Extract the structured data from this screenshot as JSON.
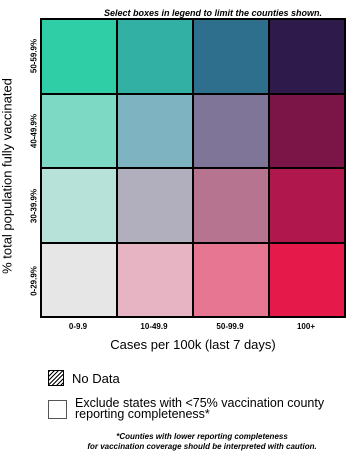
{
  "instruction": "Select boxes in legend to limit the counties shown.",
  "y_axis": {
    "title": "% total population fully vaccinated",
    "rows": [
      "50-59.9%",
      "40-49.9%",
      "30-39.9%",
      "0-29.9%"
    ]
  },
  "x_axis": {
    "title": "Cases per 100k (last 7 days)",
    "columns": [
      "0-9.9",
      "10-49.9",
      "50-99.9",
      "100+"
    ]
  },
  "grid_colors": [
    [
      "#2fcea6",
      "#32b0a4",
      "#2f6f8e",
      "#2f1a4c"
    ],
    [
      "#7ed9c4",
      "#7eb3c1",
      "#7e7598",
      "#7b1447"
    ],
    [
      "#b6e2d9",
      "#b1aebd",
      "#b67491",
      "#b0174c"
    ],
    [
      "#e6e6e6",
      "#e6b4c3",
      "#e67691",
      "#e6194b"
    ]
  ],
  "legend": {
    "no_data_label": "No Data",
    "exclude_label": "Exclude states with <75% vaccination county reporting completeness*"
  },
  "footnote": {
    "line1": "*Counties with lower reporting completeness",
    "line2": "for vaccination coverage should be interpreted with caution."
  }
}
